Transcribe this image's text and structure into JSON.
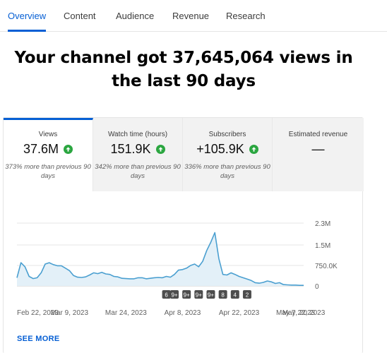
{
  "tabs": [
    {
      "label": "Overview",
      "active": true
    },
    {
      "label": "Content",
      "active": false
    },
    {
      "label": "Audience",
      "active": false
    },
    {
      "label": "Revenue",
      "active": false
    },
    {
      "label": "Research",
      "active": false
    }
  ],
  "headline": "Your channel got 37,645,064 views in the last 90 days",
  "metrics": [
    {
      "label": "Views",
      "value": "37.6M",
      "trend": "up",
      "sub": "373% more than previous 90 days",
      "active": true
    },
    {
      "label": "Watch time (hours)",
      "value": "151.9K",
      "trend": "up",
      "sub": "342% more than previous 90 days",
      "active": false
    },
    {
      "label": "Subscribers",
      "value": "+105.9K",
      "trend": "up",
      "sub": "336% more than previous 90 days",
      "active": false
    },
    {
      "label": "Estimated revenue",
      "value": "—",
      "trend": "none",
      "sub": "",
      "active": false
    }
  ],
  "colors": {
    "accent": "#065fd4",
    "up": "#2ba640",
    "line": "#4a9fd0",
    "fill": "#e3f0f8"
  },
  "chart_data": {
    "type": "area",
    "series": [
      {
        "name": "Views",
        "values": [
          300000,
          850000,
          700000,
          350000,
          270000,
          300000,
          480000,
          800000,
          850000,
          780000,
          740000,
          740000,
          650000,
          560000,
          380000,
          320000,
          310000,
          330000,
          400000,
          480000,
          450000,
          500000,
          440000,
          420000,
          350000,
          330000,
          280000,
          270000,
          260000,
          260000,
          300000,
          300000,
          260000,
          280000,
          300000,
          310000,
          300000,
          350000,
          320000,
          420000,
          580000,
          600000,
          650000,
          750000,
          800000,
          700000,
          900000,
          1300000,
          1600000,
          1950000,
          1000000,
          420000,
          400000,
          480000,
          420000,
          350000,
          300000,
          250000,
          200000,
          120000,
          100000,
          130000,
          180000,
          150000,
          90000,
          120000,
          50000,
          40000,
          30000,
          30000,
          20000,
          20000
        ]
      }
    ],
    "x_tick_labels": [
      "Feb 22, 2023",
      "Mar 9, 2023",
      "Mar 24, 2023",
      "Apr 8, 2023",
      "Apr 22, 2023",
      "May 7, 2023",
      "May 22, 2023"
    ],
    "x_tick_indices": [
      0,
      13,
      27,
      41,
      55,
      69,
      78
    ],
    "y_tick_labels": [
      "2.3M",
      "1.5M",
      "750.0K",
      "0"
    ],
    "y_tick_values": [
      2300000,
      1500000,
      750000,
      0
    ],
    "ylim": [
      0,
      2300000
    ],
    "markers": [
      {
        "label": "6",
        "index": 37
      },
      {
        "label": "9+",
        "index": 39
      },
      {
        "label": "9+",
        "index": 42
      },
      {
        "label": "9+",
        "index": 45
      },
      {
        "label": "9+",
        "index": 48
      },
      {
        "label": "8",
        "index": 51
      },
      {
        "label": "4",
        "index": 54
      },
      {
        "label": "2",
        "index": 57
      }
    ]
  },
  "see_more_label": "SEE MORE"
}
